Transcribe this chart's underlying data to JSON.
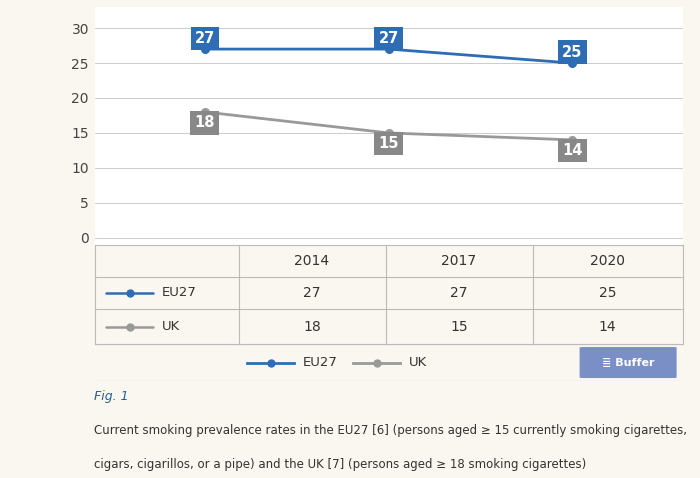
{
  "years": [
    2014,
    2017,
    2020
  ],
  "eu27_values": [
    27,
    27,
    25
  ],
  "uk_values": [
    18,
    15,
    14
  ],
  "eu27_color": "#2E6DB4",
  "uk_color": "#999999",
  "label_box_eu27": "#2E6DB4",
  "label_box_uk": "#888888",
  "background_color": "#FAF7F0",
  "chart_bg": "#FFFFFF",
  "yticks": [
    0,
    5,
    10,
    15,
    20,
    25,
    30
  ],
  "ylim": [
    -1,
    33
  ],
  "xlim": [
    2012.2,
    2021.8
  ],
  "grid_color": "#CCCCCC",
  "table_header_years": [
    "2014",
    "2017",
    "2020"
  ],
  "fig1_text": "Fig. 1",
  "caption_line1": "Current smoking prevalence rates in the EU27 [6] (persons aged ≥ 15 currently smoking cigarettes,",
  "caption_line2": "cigars, cigarillos, or a pipe) and the UK [7] (persons aged ≥ 18 smoking cigarettes)",
  "buffer_color": "#7B8FC7",
  "buffer_label": "≣ Buffer",
  "eu27_label": "EU27",
  "uk_label": "UK"
}
